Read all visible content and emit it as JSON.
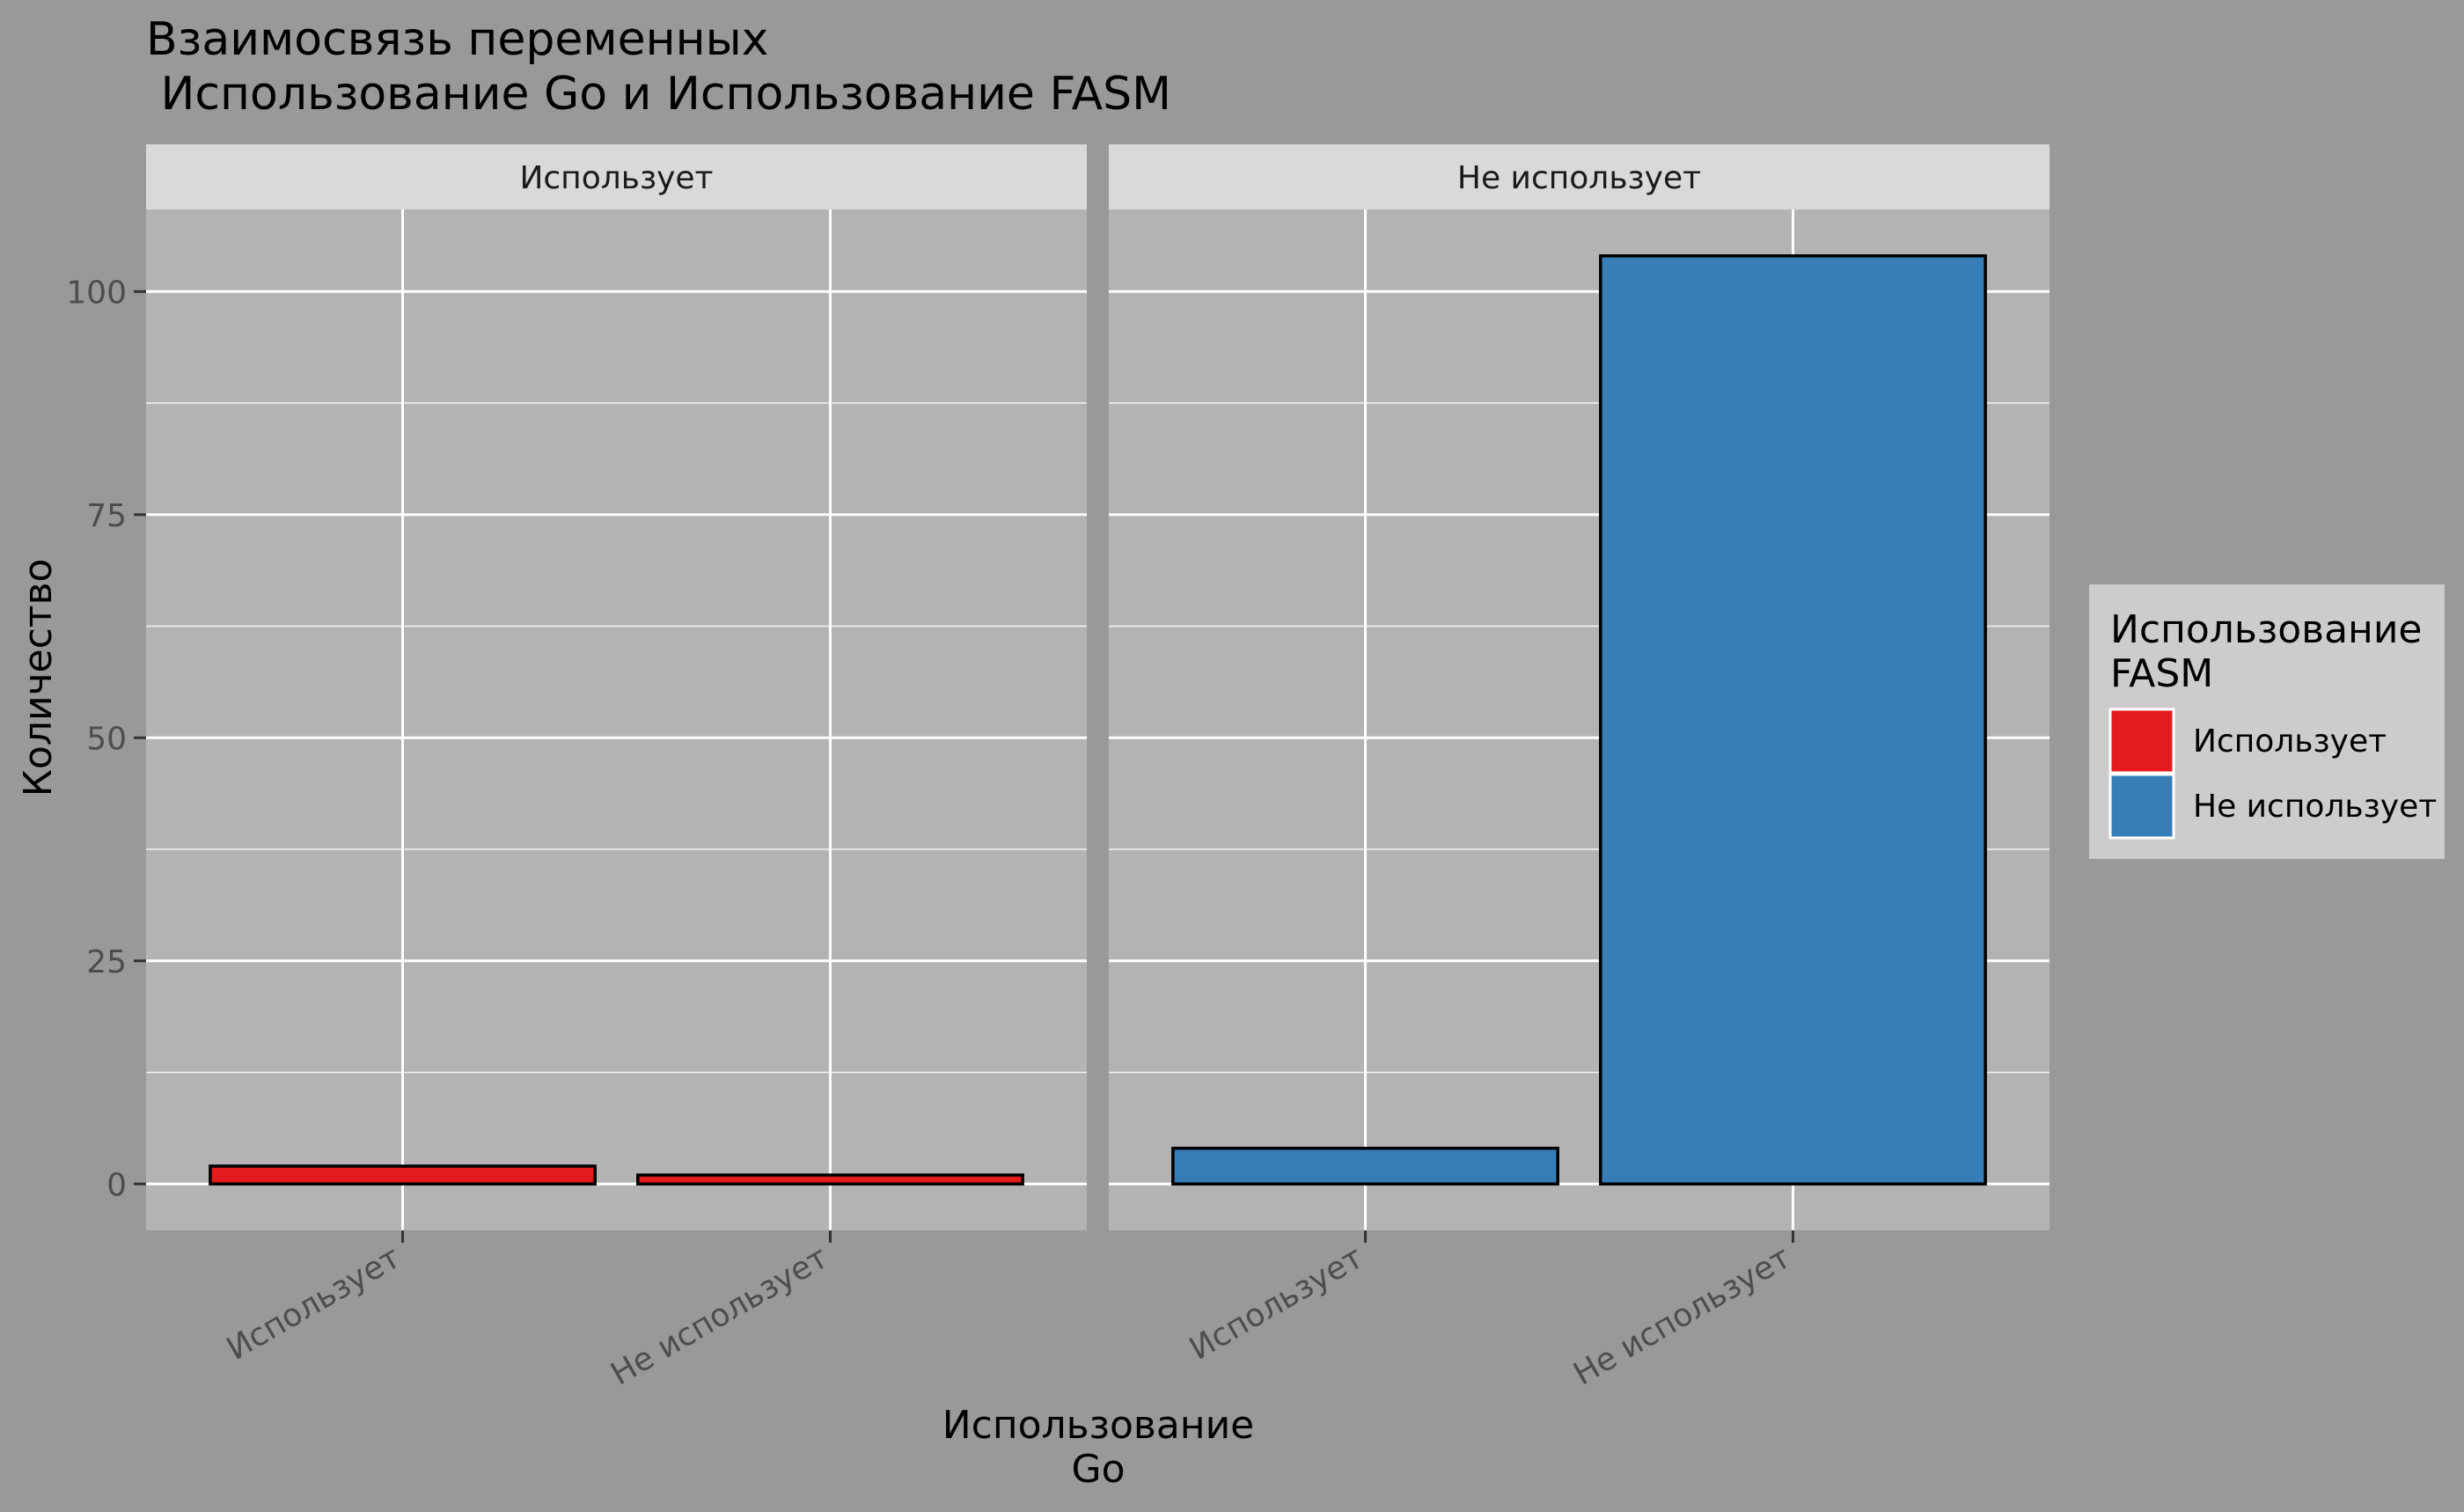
{
  "chart_data": {
    "type": "bar",
    "title_line1": "Взаимосвязь переменных",
    "title_line2": " Использование Go и Использование FASM",
    "xlabel_line1": "Использование",
    "xlabel_line2": "Go",
    "ylabel": "Количество",
    "ylim": [
      -5.2,
      109.2
    ],
    "yticks": [
      0,
      25,
      50,
      75,
      100
    ],
    "categories": [
      "Использует",
      "Не использует"
    ],
    "facets": [
      {
        "label": "Использует",
        "values": [
          2,
          1
        ],
        "color": "#E41A1C"
      },
      {
        "label": "Не использует",
        "values": [
          4,
          104
        ],
        "color": "#377EB8"
      }
    ],
    "legend": {
      "title_line1": "Использование",
      "title_line2": "FASM",
      "position": "right",
      "items": [
        {
          "label": "Использует",
          "color": "#E41A1C"
        },
        {
          "label": "Не использует",
          "color": "#377EB8"
        }
      ]
    },
    "grid": true,
    "background": "#999999",
    "panel_background": "#B3B3B3",
    "strip_background": "#D9D9D9",
    "legend_background": "#CCCCCC"
  }
}
